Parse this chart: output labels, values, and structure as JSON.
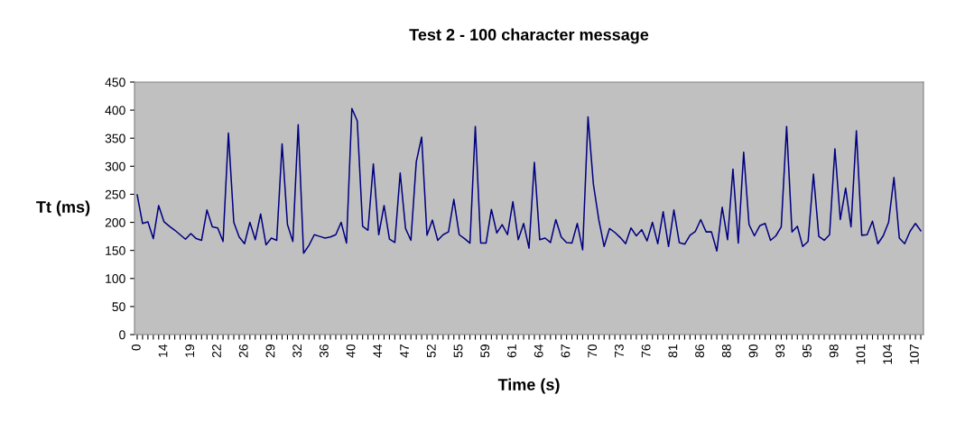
{
  "chart_data": {
    "type": "line",
    "title": "Test 2 - 100 character message",
    "xlabel": "Time (s)",
    "ylabel": "Tt (ms)",
    "categories": [
      "0",
      null,
      null,
      null,
      null,
      "14",
      null,
      null,
      null,
      null,
      "19",
      null,
      null,
      null,
      null,
      "22",
      null,
      null,
      null,
      null,
      "26",
      null,
      null,
      null,
      null,
      "29",
      null,
      null,
      null,
      null,
      "32",
      null,
      null,
      null,
      null,
      "36",
      null,
      null,
      null,
      null,
      "40",
      null,
      null,
      null,
      null,
      "44",
      null,
      null,
      null,
      null,
      "47",
      null,
      null,
      null,
      null,
      "52",
      null,
      null,
      null,
      null,
      "55",
      null,
      null,
      null,
      null,
      "59",
      null,
      null,
      null,
      null,
      "61",
      null,
      null,
      null,
      null,
      "64",
      null,
      null,
      null,
      null,
      "67",
      null,
      null,
      null,
      null,
      "70",
      null,
      null,
      null,
      null,
      "73",
      null,
      null,
      null,
      null,
      "76",
      null,
      null,
      null,
      null,
      "81",
      null,
      null,
      null,
      null,
      "86",
      null,
      null,
      null,
      null,
      "88",
      null,
      null,
      null,
      null,
      "90",
      null,
      null,
      null,
      null,
      "93",
      null,
      null,
      null,
      null,
      "95",
      null,
      null,
      null,
      null,
      "98",
      null,
      null,
      null,
      null,
      "101",
      null,
      null,
      null,
      null,
      "104",
      null,
      null,
      null,
      null,
      "107",
      null
    ],
    "series": [
      {
        "color": "#000080",
        "values": [
          249,
          198,
          201,
          171,
          230,
          201,
          193,
          186,
          178,
          170,
          180,
          171,
          168,
          222,
          192,
          190,
          166,
          359,
          200,
          174,
          162,
          200,
          169,
          215,
          160,
          172,
          168,
          340,
          196,
          166,
          374,
          145,
          159,
          178,
          175,
          172,
          174,
          178,
          200,
          163,
          403,
          381,
          193,
          186,
          304,
          178,
          230,
          170,
          164,
          288,
          189,
          168,
          308,
          352,
          177,
          204,
          168,
          178,
          183,
          241,
          178,
          171,
          163,
          371,
          163,
          163,
          223,
          181,
          196,
          178,
          237,
          169,
          198,
          154,
          307,
          169,
          172,
          164,
          205,
          174,
          164,
          163,
          198,
          151,
          388,
          268,
          205,
          157,
          189,
          182,
          173,
          162,
          190,
          176,
          187,
          167,
          200,
          162,
          219,
          157,
          222,
          164,
          161,
          177,
          184,
          205,
          183,
          183,
          149,
          227,
          169,
          295,
          163,
          325,
          196,
          176,
          194,
          198,
          168,
          176,
          192,
          371,
          183,
          193,
          157,
          166,
          286,
          175,
          168,
          178,
          331,
          205,
          261,
          192,
          363,
          177,
          178,
          202,
          162,
          176,
          200,
          280,
          172,
          162,
          184,
          198,
          185
        ]
      }
    ],
    "ylim": [
      0,
      450
    ],
    "yticks": [
      0,
      50,
      100,
      150,
      200,
      250,
      300,
      350,
      400,
      450
    ],
    "grid": false,
    "marker": "none",
    "line_style": "solid"
  }
}
